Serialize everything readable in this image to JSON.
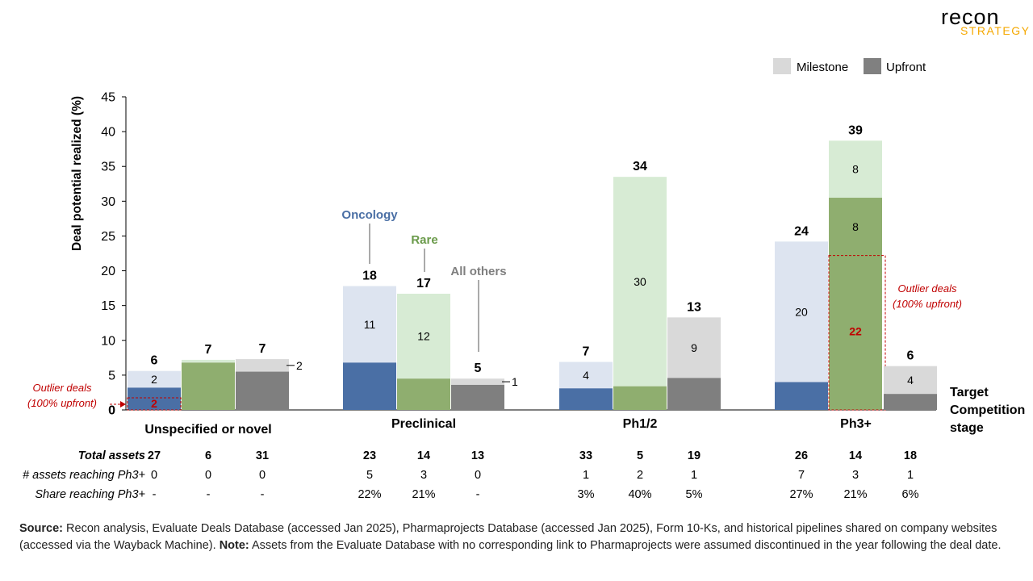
{
  "logo": {
    "main_text": "recon",
    "sub_text": "STRATEGY",
    "colors": {
      "main": "#000000",
      "accent": "#f5a800"
    }
  },
  "legend": [
    {
      "label": "Milestone",
      "color": "#d9d9d9"
    },
    {
      "label": "Upfront",
      "color": "#808080"
    }
  ],
  "chart_data": {
    "type": "bar",
    "subtype": "stacked",
    "ylabel": "Deal potential realized (%)",
    "xlabel": "Target\nCompetition\nstage",
    "ylim": [
      0,
      45
    ],
    "yticks": [
      0,
      5,
      10,
      15,
      20,
      25,
      30,
      35,
      40,
      45
    ],
    "grid": false,
    "legend_position": "top-right",
    "series_names": [
      "Upfront",
      "Milestone"
    ],
    "categories": [
      "Unspecified or novel",
      "Preclinical",
      "Ph1/2",
      "Ph3+"
    ],
    "therapy_areas": [
      {
        "name": "Oncology",
        "upfront_color": "#4a6fa5",
        "milestone_color": "#dde4f0"
      },
      {
        "name": "Rare",
        "upfront_color": "#8fae6f",
        "milestone_color": "#d7ebd4"
      },
      {
        "name": "All others",
        "upfront_color": "#7f7f7f",
        "milestone_color": "#d9d9d9"
      }
    ],
    "groups": [
      {
        "category": "Unspecified or novel",
        "bars": [
          {
            "area": "Oncology",
            "upfront": 3.2,
            "milestone": 2.4,
            "total_label": "6",
            "upfront_label": "2",
            "milestone_label": "2",
            "upfront_outlier": true
          },
          {
            "area": "Rare",
            "upfront": 6.8,
            "milestone": 0.4,
            "total_label": "7"
          },
          {
            "area": "All others",
            "upfront": 5.5,
            "milestone": 1.8,
            "total_label": "7",
            "milestone_label": "2",
            "milestone_label_outside": true
          }
        ]
      },
      {
        "category": "Preclinical",
        "bars": [
          {
            "area": "Oncology",
            "upfront": 6.8,
            "milestone": 11.0,
            "total_label": "18",
            "milestone_label": "11"
          },
          {
            "area": "Rare",
            "upfront": 4.5,
            "milestone": 12.2,
            "total_label": "17",
            "milestone_label": "12"
          },
          {
            "area": "All others",
            "upfront": 3.6,
            "milestone": 0.9,
            "total_label": "5",
            "milestone_label": "1",
            "milestone_label_outside": true
          }
        ]
      },
      {
        "category": "Ph1/2",
        "bars": [
          {
            "area": "Oncology",
            "upfront": 3.1,
            "milestone": 3.8,
            "total_label": "7",
            "milestone_label": "4"
          },
          {
            "area": "Rare",
            "upfront": 3.4,
            "milestone": 30.1,
            "total_label": "34",
            "milestone_label": "30"
          },
          {
            "area": "All others",
            "upfront": 4.6,
            "milestone": 8.7,
            "total_label": "13",
            "milestone_label": "9"
          }
        ]
      },
      {
        "category": "Ph3+",
        "bars": [
          {
            "area": "Oncology",
            "upfront": 4.0,
            "milestone": 20.2,
            "total_label": "24",
            "milestone_label": "20"
          },
          {
            "area": "Rare",
            "upfront": 30.5,
            "milestone": 8.2,
            "total_label": "39",
            "upfront_label": "22",
            "upfront_top_label": "8",
            "upfront_outlier_level": 22.2,
            "milestone_label": "8",
            "upfront_outlier": true
          },
          {
            "area": "All others",
            "upfront": 2.3,
            "milestone": 4.0,
            "total_label": "6",
            "milestone_label": "4"
          }
        ]
      }
    ],
    "annotations": [
      {
        "text": "Outlier  deals\n(100% upfront)",
        "group": "Unspecified or novel",
        "side": "left"
      },
      {
        "text": "Outlier  deals\n(100% upfront)",
        "group": "Ph3+",
        "side": "right"
      }
    ],
    "table": {
      "rows": [
        {
          "label": "Total assets",
          "bold": true,
          "values": [
            "27",
            "6",
            "31",
            "23",
            "14",
            "13",
            "33",
            "5",
            "19",
            "26",
            "14",
            "18"
          ]
        },
        {
          "label": "# assets reaching Ph3+",
          "bold": false,
          "values": [
            "0",
            "0",
            "0",
            "5",
            "3",
            "0",
            "1",
            "2",
            "1",
            "7",
            "3",
            "1"
          ]
        },
        {
          "label": "Share reaching Ph3+",
          "bold": false,
          "values": [
            "-",
            "-",
            "-",
            "22%",
            "21%",
            "-",
            "3%",
            "40%",
            "5%",
            "27%",
            "21%",
            "6%"
          ]
        }
      ]
    },
    "colors": {
      "outlier_text": "#c00000",
      "axis": "#000000",
      "area_label_oncology": "#4a6fa5",
      "area_label_rare": "#6a9a4a",
      "area_label_others": "#7f7f7f"
    }
  },
  "footnote": {
    "source_label": "Source:",
    "source_text": " Recon analysis, Evaluate Deals Database (accessed Jan 2025), Pharmaprojects Database (accessed Jan 2025), Form 10-Ks, and historical pipelines shared on company websites (accessed via the Wayback Machine).",
    "note_label": "Note:",
    "note_text": " Assets from the Evaluate Database with no corresponding link to Pharmaprojects were assumed discontinued in the year following the deal date."
  }
}
